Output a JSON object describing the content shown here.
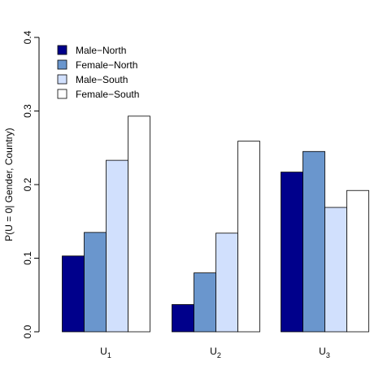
{
  "chart_data": {
    "type": "bar",
    "ylabel": "P(U = 0| Gender, Country)",
    "ylim": [
      0,
      0.4
    ],
    "yticks": [
      "0.0",
      "0.1",
      "0.2",
      "0.3",
      "0.4"
    ],
    "categories": [
      {
        "base": "U",
        "sub": "1"
      },
      {
        "base": "U",
        "sub": "2"
      },
      {
        "base": "U",
        "sub": "3"
      }
    ],
    "series": [
      {
        "name": "Male−North",
        "color": "#00008b",
        "values": [
          0.103,
          0.037,
          0.217
        ]
      },
      {
        "name": "Female−North",
        "color": "#6a96cd",
        "values": [
          0.135,
          0.08,
          0.245
        ]
      },
      {
        "name": "Male−South",
        "color": "#d1e0fd",
        "values": [
          0.233,
          0.134,
          0.169
        ]
      },
      {
        "name": "Female−South",
        "color": "#ffffff",
        "values": [
          0.293,
          0.259,
          0.192
        ]
      }
    ],
    "legend_position": "top-left",
    "grid": false
  }
}
